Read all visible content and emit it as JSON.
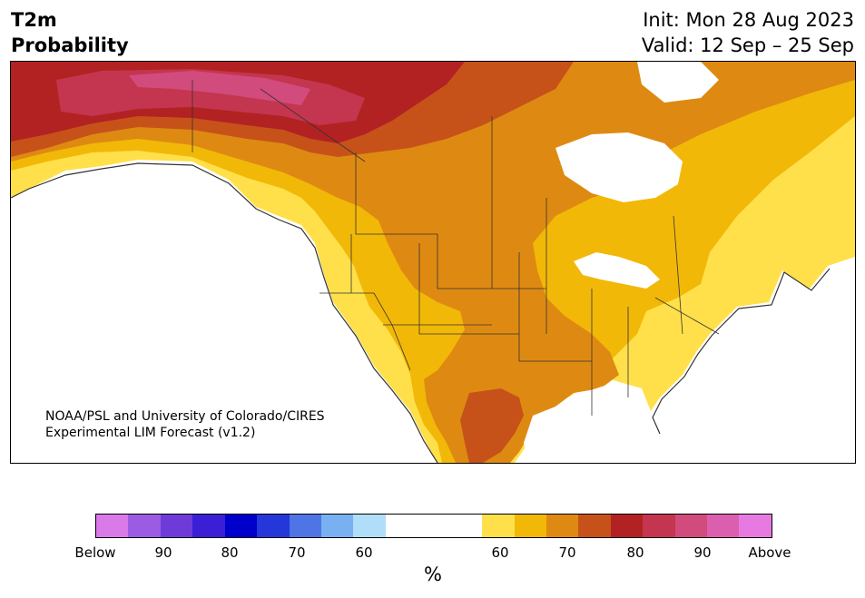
{
  "header": {
    "title_line1": "T2m",
    "title_line2": "Probability",
    "init_text": "Init: Mon 28 Aug 2023",
    "valid_text": "Valid: 12 Sep – 25 Sep"
  },
  "map": {
    "region": "North America",
    "credit_line1": "NOAA/PSL and University of Colorado/CIRES",
    "credit_line2": "Experimental LIM Forecast (v1.2)"
  },
  "colorbar": {
    "unit": "%",
    "tick_labels": [
      "Below",
      "90",
      "80",
      "70",
      "60",
      "60",
      "70",
      "80",
      "90",
      "Above"
    ],
    "below_colors": [
      "#d97ae8",
      "#9b5ce3",
      "#6e3bd9",
      "#3a1fd6",
      "#0000cc",
      "#2537d9",
      "#4f74e6",
      "#78b0f2",
      "#b0def8"
    ],
    "neutral_color": "#ffffff",
    "above_colors": [
      "#ffe04a",
      "#f2b808",
      "#de8a12",
      "#c6521a",
      "#b22222",
      "#c43550",
      "#d14b7c",
      "#dc5faf",
      "#e77ae0"
    ]
  }
}
